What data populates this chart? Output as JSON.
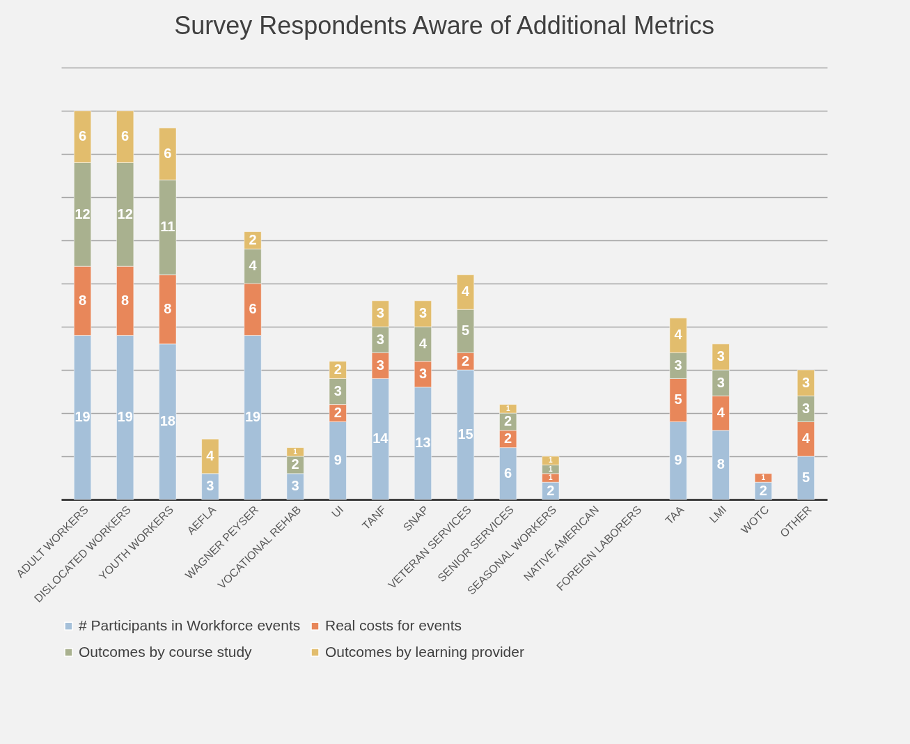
{
  "chart_data": {
    "type": "bar",
    "title": "Survey Respondents Aware of Additional Metrics",
    "categories": [
      "ADULT WORKERS",
      "DISLOCATED WORKERS",
      "YOUTH WORKERS",
      "AEFLA",
      "WAGNER PEYSER",
      "VOCATIONAL REHAB",
      "UI",
      "TANF",
      "SNAP",
      "VETERAN SERVICES",
      "SENIOR SERVICES",
      "SEASONAL WORKERS",
      "NATIVE AMERICAN",
      "FOREIGN LABORERS",
      "TAA",
      "LMI",
      "WOTC",
      "OTHER"
    ],
    "series": [
      {
        "name": "# Participants in Workforce events",
        "color": "#a5c0d9",
        "values": [
          19,
          19,
          18,
          3,
          19,
          3,
          9,
          14,
          13,
          15,
          6,
          2,
          null,
          null,
          9,
          8,
          2,
          5
        ]
      },
      {
        "name": "Real costs for events",
        "color": "#e8875a",
        "values": [
          8,
          8,
          8,
          null,
          6,
          null,
          2,
          3,
          3,
          2,
          2,
          1,
          null,
          null,
          5,
          4,
          1,
          4
        ]
      },
      {
        "name": "Outcomes by course study",
        "color": "#a9b18f",
        "values": [
          12,
          12,
          11,
          null,
          4,
          2,
          3,
          3,
          4,
          5,
          2,
          1,
          null,
          null,
          3,
          3,
          null,
          3
        ]
      },
      {
        "name": "Outcomes by learning provider",
        "color": "#e2bd6d",
        "values": [
          6,
          6,
          6,
          4,
          2,
          1,
          2,
          3,
          3,
          4,
          1,
          1,
          null,
          null,
          4,
          3,
          null,
          3
        ]
      }
    ],
    "stacked": true,
    "data_labels": true,
    "ylim": [
      0,
      50
    ],
    "yticks": [
      {
        "value": 0,
        "label": null
      },
      {
        "value": 5,
        "label": null
      },
      {
        "value": 10,
        "label": null
      },
      {
        "value": 15,
        "label": null
      },
      {
        "value": 20,
        "label": null
      },
      {
        "value": 25,
        "label": null
      },
      {
        "value": 30,
        "label": null
      },
      {
        "value": 35,
        "label": null
      },
      {
        "value": 40,
        "label": null
      },
      {
        "value": 45,
        "label": null
      },
      {
        "value": 50,
        "label": null
      }
    ],
    "grid": "y",
    "legend": "bottom",
    "tick_labels": "x"
  }
}
